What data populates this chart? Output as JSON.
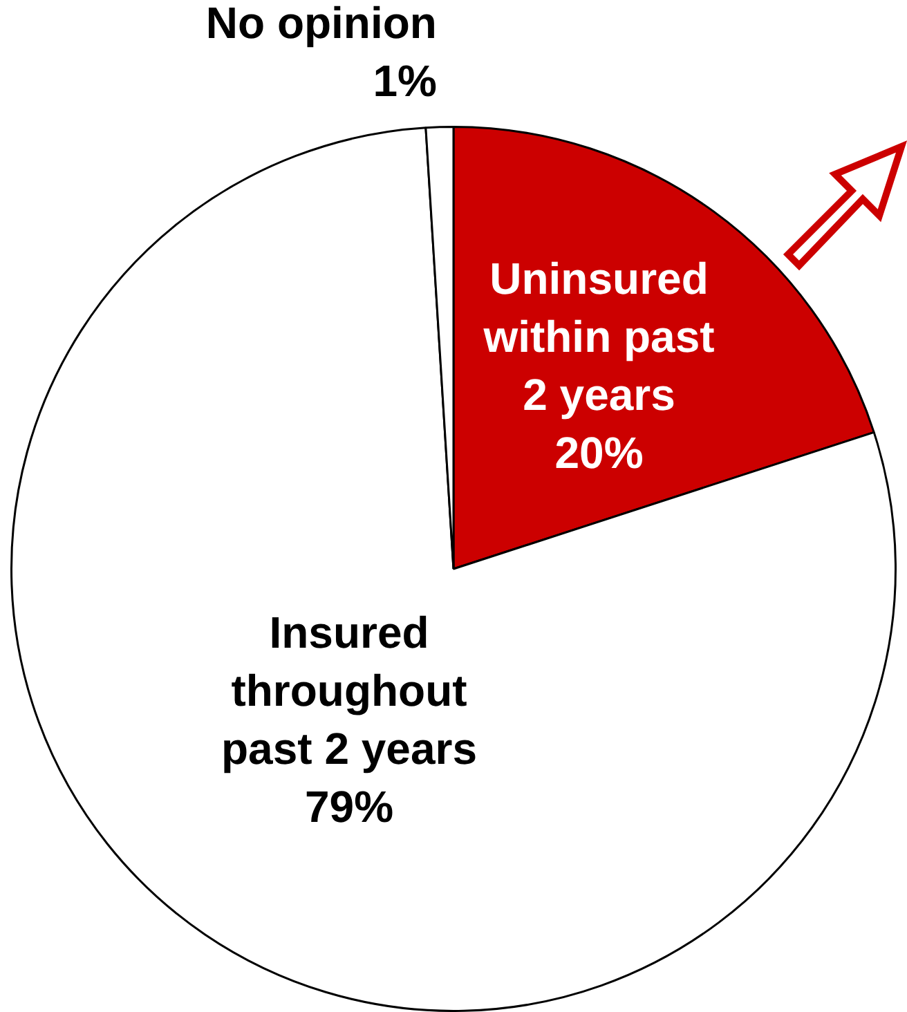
{
  "chart_data": {
    "type": "pie",
    "categories": [
      "Uninsured within past 2 years",
      "Insured throughout past 2 years",
      "No opinion"
    ],
    "values": [
      20,
      79,
      1
    ],
    "value_labels": [
      "20%",
      "79%",
      "1%"
    ],
    "colors": [
      "#cc0000",
      "#ffffff",
      "#ffffff"
    ],
    "legend": false
  }
}
